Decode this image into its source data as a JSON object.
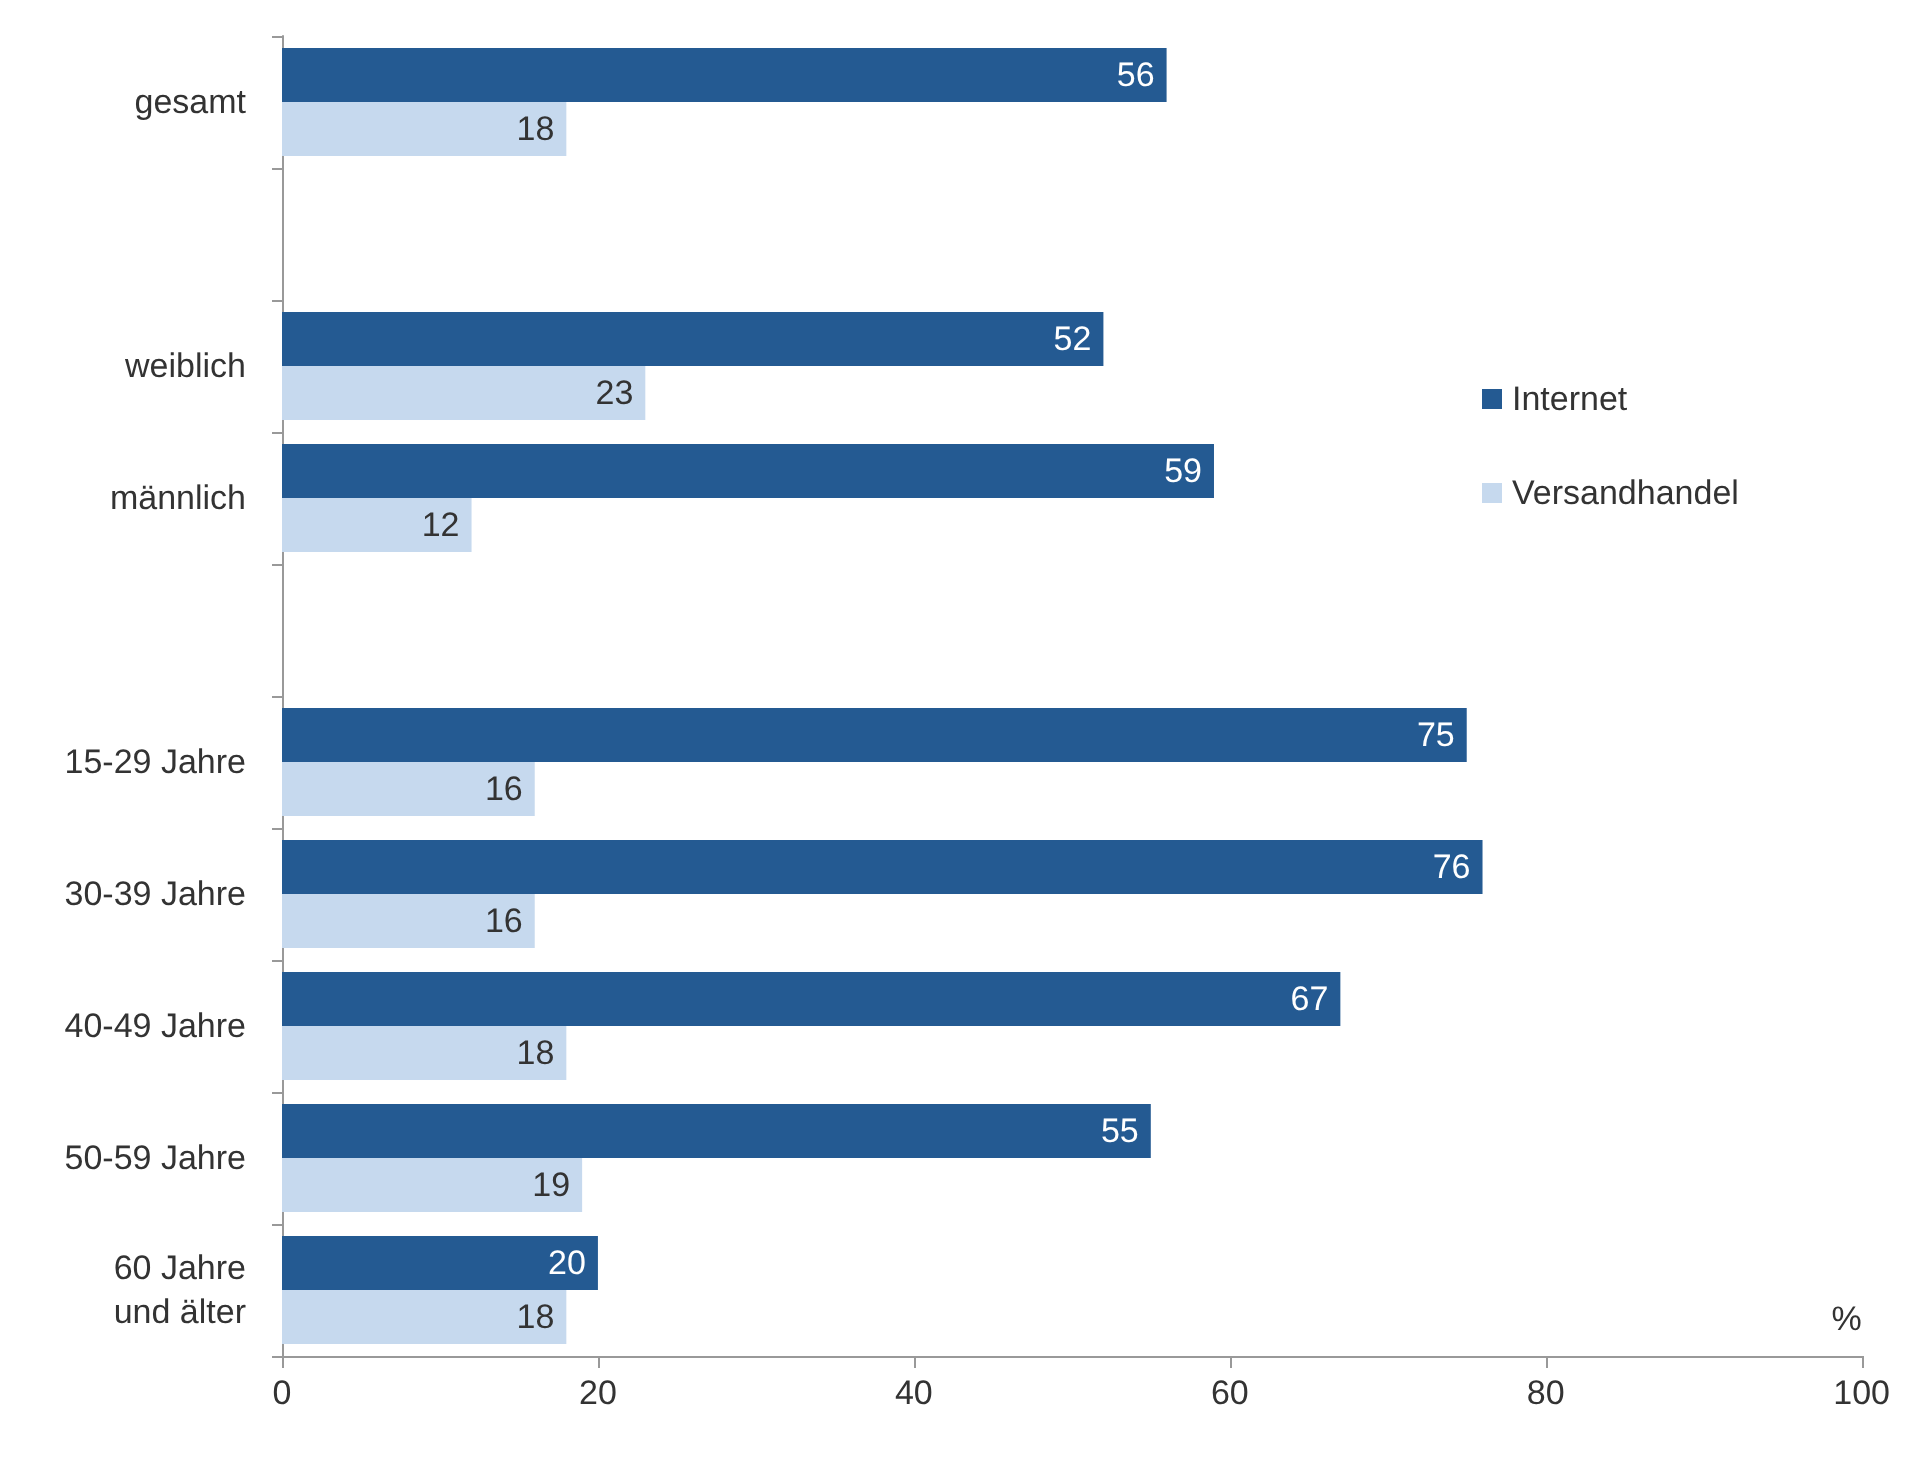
{
  "chart_data": {
    "type": "bar",
    "orientation": "horizontal",
    "xlabel": "%",
    "categories": [
      "gesamt",
      null,
      "weiblich",
      "männlich",
      null,
      "15-29 Jahre",
      "30-39 Jahre",
      "40-49 Jahre",
      "50-59 Jahre",
      "60 Jahre\nund älter"
    ],
    "series": [
      {
        "name": "Internet",
        "color": "#245a92",
        "values": [
          56,
          null,
          52,
          59,
          null,
          75,
          76,
          67,
          55,
          20
        ]
      },
      {
        "name": "Versandhandel",
        "color": "#c6d9ee",
        "values": [
          18,
          null,
          23,
          12,
          null,
          16,
          16,
          18,
          19,
          18
        ]
      }
    ],
    "xlim": [
      0,
      100
    ],
    "xticks": [
      0,
      20,
      40,
      60,
      80,
      100
    ],
    "grid": false,
    "legend": "right",
    "data_labels": true
  }
}
